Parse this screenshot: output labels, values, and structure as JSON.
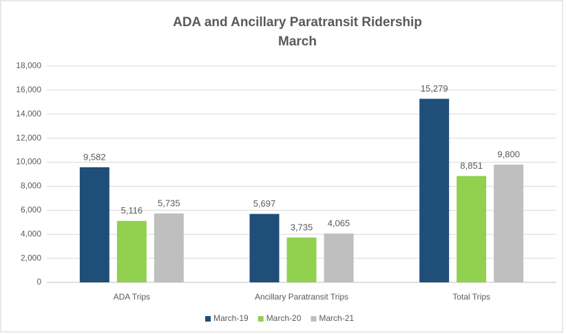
{
  "chart_data": {
    "type": "bar",
    "title": "ADA and Ancillary Paratransit Ridership",
    "subtitle": "March",
    "categories": [
      "ADA Trips",
      "Ancillary Paratransit Trips",
      "Total Trips"
    ],
    "series": [
      {
        "name": "March-19",
        "color": "#1f4e79",
        "values": [
          9582,
          5697,
          15279
        ],
        "value_labels": [
          "9,582",
          "5,697",
          "15,279"
        ]
      },
      {
        "name": "March-20",
        "color": "#92d050",
        "values": [
          5116,
          3735,
          8851
        ],
        "value_labels": [
          "5,116",
          "3,735",
          "8,851"
        ]
      },
      {
        "name": "March-21",
        "color": "#bfbfbf",
        "values": [
          5735,
          4065,
          9800
        ],
        "value_labels": [
          "5,735",
          "4,065",
          "9,800"
        ]
      }
    ],
    "ylim": [
      0,
      18000
    ],
    "yticks": [
      0,
      {
        "value": 2000,
        "label": "2,000"
      },
      {
        "value": 4000,
        "label": "4,000"
      },
      {
        "value": 6000,
        "label": "6,000"
      },
      {
        "value": 8000,
        "label": "8,000"
      },
      {
        "value": 10000,
        "label": "10,000"
      },
      {
        "value": 12000,
        "label": "12,000"
      },
      {
        "value": 14000,
        "label": "14,000"
      },
      {
        "value": 16000,
        "label": "16,000"
      },
      {
        "value": 18000,
        "label": "18,000"
      }
    ],
    "grid": true,
    "legend": "bottom"
  }
}
